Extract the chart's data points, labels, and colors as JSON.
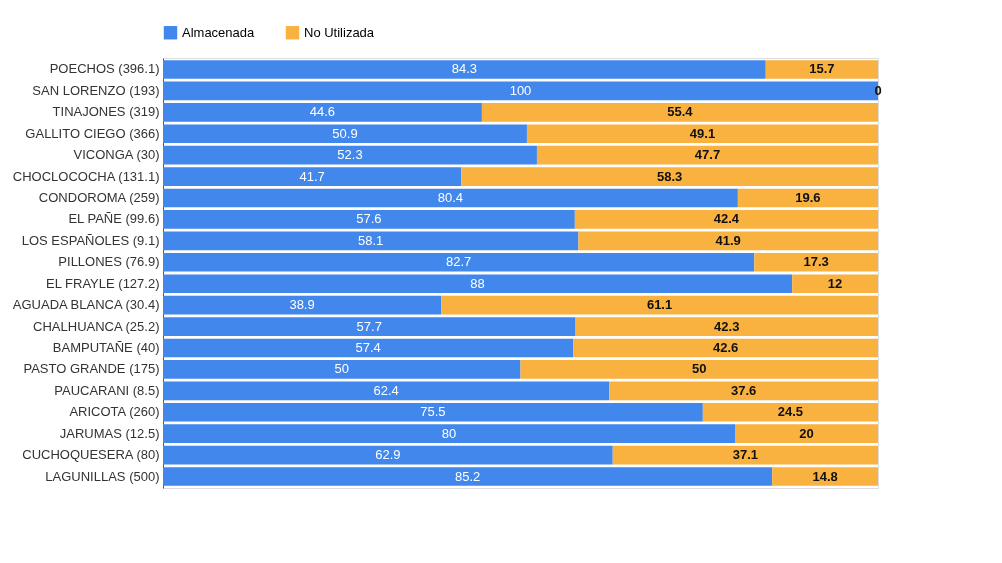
{
  "chart_data": {
    "type": "bar",
    "orientation": "horizontal",
    "stacked": true,
    "data_labels": true,
    "legend": "top",
    "tick_labels": "y",
    "grid": false,
    "categories": [
      "POECHOS (396.1)",
      "SAN LORENZO (193)",
      "TINAJONES (319)",
      "GALLITO CIEGO (366)",
      "VICONGA (30)",
      "CHOCLOCOCHA (131.1)",
      "CONDOROMA (259)",
      "EL PAÑE (99.6)",
      "LOS ESPAÑOLES (9.1)",
      "PILLONES (76.9)",
      "EL FRAYLE (127.2)",
      "AGUADA BLANCA (30.4)",
      "CHALHUANCA (25.2)",
      "BAMPUTAÑE (40)",
      "PASTO GRANDE (175)",
      "PAUCARANI (8.5)",
      "ARICOTA (260)",
      "JARUMAS (12.5)",
      "CUCHOQUESERA (80)",
      "LAGUNILLAS (500)"
    ],
    "series": [
      {
        "name": "Almacenada",
        "color": "#4287ec",
        "values": [
          84.3,
          100,
          44.6,
          50.9,
          52.3,
          41.7,
          80.4,
          57.6,
          58.1,
          82.7,
          88,
          38.9,
          57.7,
          57.4,
          50,
          62.4,
          75.5,
          80,
          62.9,
          85.2
        ]
      },
      {
        "name": "No Utilizada",
        "color": "#f9b13f",
        "values": [
          15.7,
          0,
          55.4,
          49.1,
          47.7,
          58.3,
          19.6,
          42.4,
          41.9,
          17.3,
          12,
          61.1,
          42.3,
          42.6,
          50,
          37.6,
          24.5,
          20,
          37.1,
          14.8
        ]
      }
    ]
  }
}
